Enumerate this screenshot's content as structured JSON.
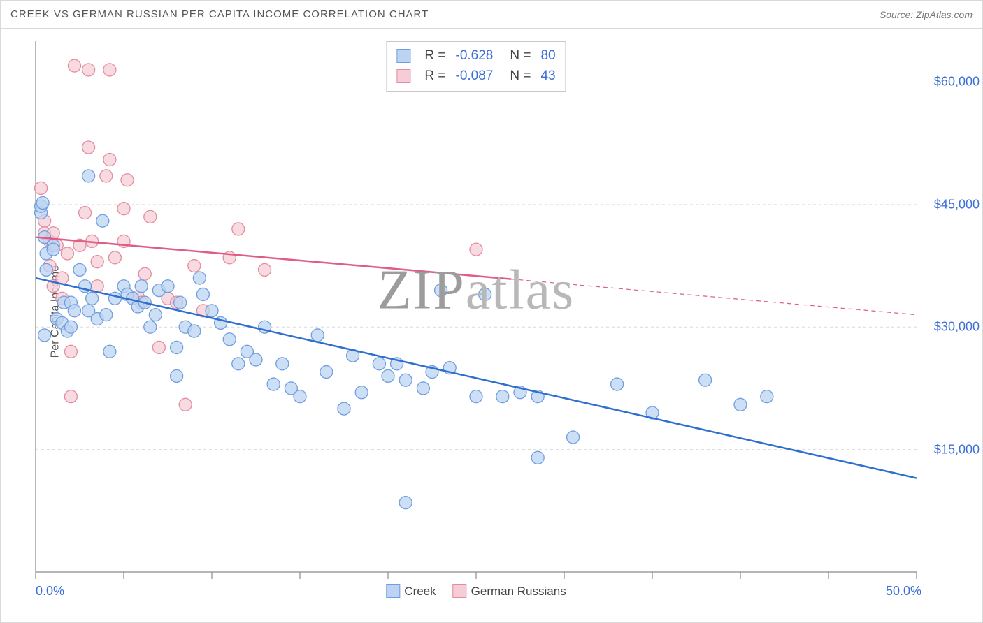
{
  "title": "CREEK VS GERMAN RUSSIAN PER CAPITA INCOME CORRELATION CHART",
  "source": "Source: ZipAtlas.com",
  "watermark_bold": "ZIP",
  "watermark_light": "atlas",
  "ylabel": "Per Capita Income",
  "chart": {
    "type": "scatter",
    "xlim": [
      0,
      50
    ],
    "ylim": [
      0,
      65000
    ],
    "xtick_positions": [
      0,
      5,
      10,
      15,
      20,
      25,
      30,
      35,
      40,
      45,
      50
    ],
    "xtick_labels_shown": {
      "0": "0.0%",
      "50": "50.0%"
    },
    "ytick_positions": [
      15000,
      30000,
      45000,
      60000
    ],
    "ytick_labels": [
      "$15,000",
      "$30,000",
      "$45,000",
      "$60,000"
    ],
    "grid_color": "#d9d9d9",
    "axis_color": "#8a8a8a",
    "background_color": "#ffffff",
    "marker_radius": 9,
    "marker_stroke_width": 1.3,
    "line_width": 2.5,
    "series": [
      {
        "name": "Creek",
        "fill": "#bcd4f2",
        "stroke": "#6f9ee0",
        "line_color": "#2f6fd0",
        "r": -0.628,
        "n": 80,
        "trend": {
          "x1": 0,
          "y1": 36000,
          "x2": 50,
          "y2": 11500,
          "solid_until_x": 50
        },
        "points": [
          [
            0.3,
            44000
          ],
          [
            0.3,
            44800
          ],
          [
            0.4,
            45200
          ],
          [
            0.5,
            41000
          ],
          [
            0.6,
            39000
          ],
          [
            0.6,
            37000
          ],
          [
            1.0,
            40000
          ],
          [
            1.2,
            31000
          ],
          [
            1.5,
            30500
          ],
          [
            1.6,
            33000
          ],
          [
            1.8,
            29500
          ],
          [
            2.0,
            30000
          ],
          [
            2.0,
            33000
          ],
          [
            2.2,
            32000
          ],
          [
            2.5,
            37000
          ],
          [
            2.8,
            35000
          ],
          [
            3.0,
            48500
          ],
          [
            3.0,
            32000
          ],
          [
            3.2,
            33500
          ],
          [
            3.5,
            31000
          ],
          [
            3.8,
            43000
          ],
          [
            4.0,
            31500
          ],
          [
            4.2,
            27000
          ],
          [
            4.5,
            33500
          ],
          [
            5.0,
            35000
          ],
          [
            5.2,
            34000
          ],
          [
            5.5,
            33500
          ],
          [
            5.8,
            32500
          ],
          [
            6.0,
            35000
          ],
          [
            6.2,
            33000
          ],
          [
            6.5,
            30000
          ],
          [
            6.8,
            31500
          ],
          [
            7.0,
            34500
          ],
          [
            7.5,
            35000
          ],
          [
            8.0,
            24000
          ],
          [
            8.0,
            27500
          ],
          [
            8.2,
            33000
          ],
          [
            8.5,
            30000
          ],
          [
            9.0,
            29500
          ],
          [
            9.3,
            36000
          ],
          [
            9.5,
            34000
          ],
          [
            10.0,
            32000
          ],
          [
            10.5,
            30500
          ],
          [
            11.0,
            28500
          ],
          [
            11.5,
            25500
          ],
          [
            12.0,
            27000
          ],
          [
            12.5,
            26000
          ],
          [
            13.0,
            30000
          ],
          [
            13.5,
            23000
          ],
          [
            14.0,
            25500
          ],
          [
            14.5,
            22500
          ],
          [
            15.0,
            21500
          ],
          [
            16.0,
            29000
          ],
          [
            16.5,
            24500
          ],
          [
            17.5,
            20000
          ],
          [
            18.0,
            26500
          ],
          [
            18.5,
            22000
          ],
          [
            19.5,
            25500
          ],
          [
            20.0,
            24000
          ],
          [
            20.5,
            25500
          ],
          [
            21.0,
            23500
          ],
          [
            21.0,
            8500
          ],
          [
            22.0,
            22500
          ],
          [
            22.5,
            24500
          ],
          [
            23.0,
            34500
          ],
          [
            23.5,
            25000
          ],
          [
            25.0,
            21500
          ],
          [
            25.5,
            34000
          ],
          [
            26.5,
            21500
          ],
          [
            27.5,
            22000
          ],
          [
            28.5,
            14000
          ],
          [
            28.5,
            21500
          ],
          [
            30.5,
            16500
          ],
          [
            33.0,
            23000
          ],
          [
            35.0,
            19500
          ],
          [
            38.0,
            23500
          ],
          [
            40.0,
            20500
          ],
          [
            41.5,
            21500
          ],
          [
            0.5,
            29000
          ],
          [
            1.0,
            39500
          ]
        ]
      },
      {
        "name": "German Russians",
        "fill": "#f6cdd7",
        "stroke": "#e48ca2",
        "line_color": "#e05c84",
        "r": -0.087,
        "n": 43,
        "trend": {
          "x1": 0,
          "y1": 41000,
          "x2": 50,
          "y2": 31500,
          "solid_until_x": 27
        },
        "points": [
          [
            0.3,
            47000
          ],
          [
            0.5,
            43000
          ],
          [
            0.5,
            41500
          ],
          [
            0.8,
            40500
          ],
          [
            0.8,
            37500
          ],
          [
            1.0,
            41500
          ],
          [
            1.0,
            35000
          ],
          [
            1.2,
            40000
          ],
          [
            1.5,
            36000
          ],
          [
            1.5,
            33500
          ],
          [
            1.8,
            39000
          ],
          [
            2.0,
            27000
          ],
          [
            2.0,
            21500
          ],
          [
            2.2,
            62000
          ],
          [
            2.5,
            40000
          ],
          [
            2.8,
            44000
          ],
          [
            3.0,
            61500
          ],
          [
            3.0,
            52000
          ],
          [
            3.2,
            40500
          ],
          [
            3.5,
            38000
          ],
          [
            3.5,
            35000
          ],
          [
            4.0,
            48500
          ],
          [
            4.2,
            61500
          ],
          [
            4.2,
            50500
          ],
          [
            4.5,
            38500
          ],
          [
            5.0,
            44500
          ],
          [
            5.0,
            40500
          ],
          [
            5.2,
            48000
          ],
          [
            5.5,
            33500
          ],
          [
            5.8,
            33700
          ],
          [
            6.0,
            33000
          ],
          [
            6.2,
            36500
          ],
          [
            6.5,
            43500
          ],
          [
            7.0,
            27500
          ],
          [
            7.5,
            33500
          ],
          [
            8.0,
            33000
          ],
          [
            8.5,
            20500
          ],
          [
            9.0,
            37500
          ],
          [
            9.5,
            32000
          ],
          [
            11.0,
            38500
          ],
          [
            11.5,
            42000
          ],
          [
            13.0,
            37000
          ],
          [
            25.0,
            39500
          ]
        ]
      }
    ],
    "legend_bottom": [
      {
        "label": "Creek",
        "fill": "#bcd4f2",
        "stroke": "#6f9ee0"
      },
      {
        "label": "German Russians",
        "fill": "#f6cdd7",
        "stroke": "#e48ca2"
      }
    ],
    "stats_box": {
      "rows": [
        {
          "swatch_fill": "#bcd4f2",
          "swatch_stroke": "#6f9ee0",
          "r_label": "R =",
          "r": "-0.628",
          "n_label": "N =",
          "n": "80"
        },
        {
          "swatch_fill": "#f6cdd7",
          "swatch_stroke": "#e48ca2",
          "r_label": "R =",
          "r": "-0.087",
          "n_label": "N =",
          "n": "43"
        }
      ]
    }
  }
}
